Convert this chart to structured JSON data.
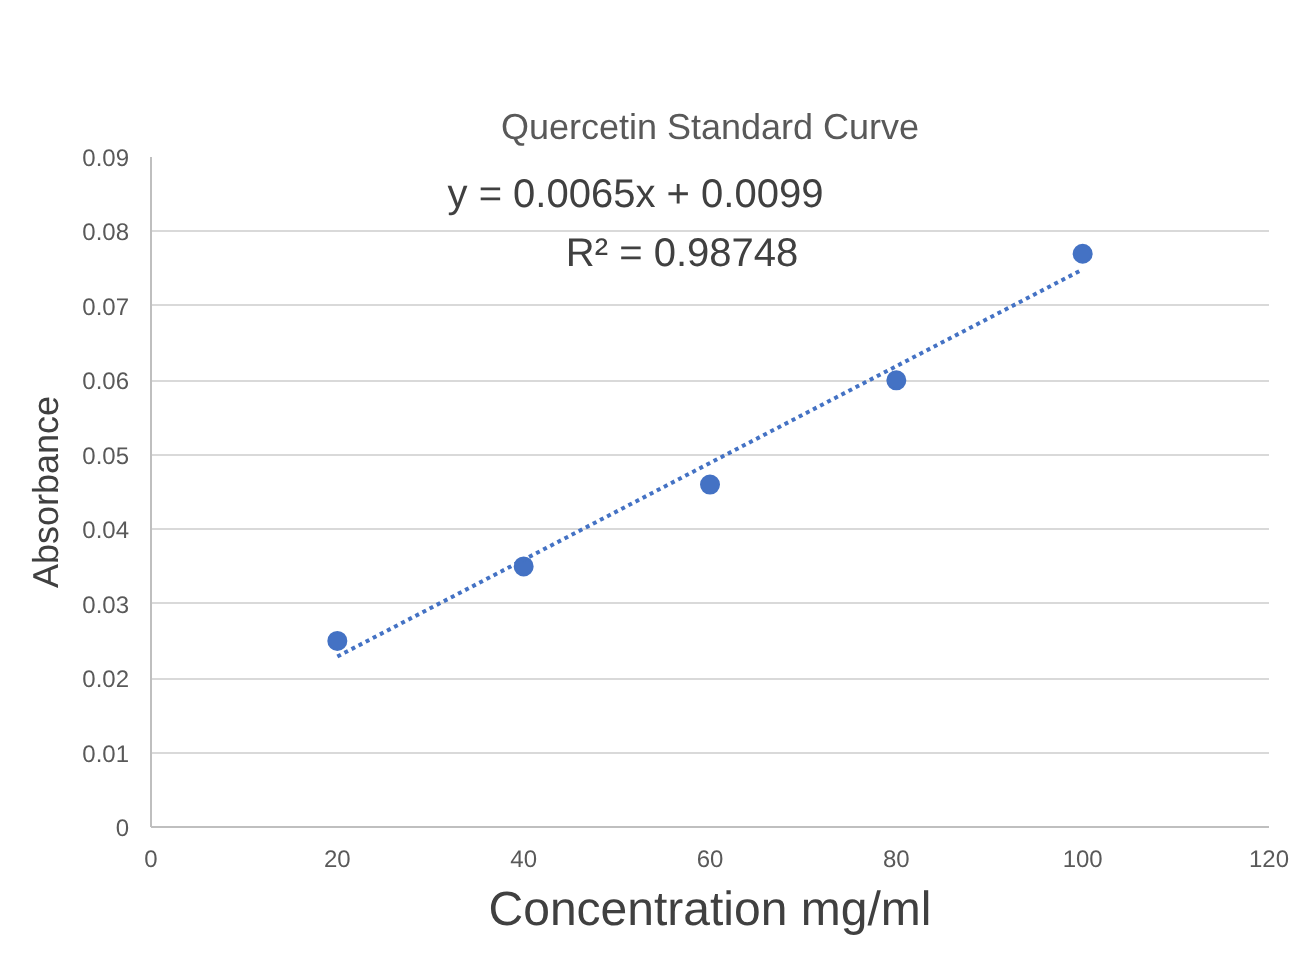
{
  "chart_data": {
    "type": "scatter",
    "title": "Quercetin Standard Curve",
    "xlabel": "Concentration mg/ml",
    "ylabel": "Absorbance",
    "annotations": [
      "y = 0.0065x + 0.0099",
      "R² = 0.98748"
    ],
    "series": [
      {
        "color": "#4472c4",
        "x": [
          20,
          40,
          60,
          80,
          100
        ],
        "values": [
          0.025,
          0.035,
          0.046,
          0.06,
          0.077
        ],
        "marker": "circle"
      },
      {
        "type": "line",
        "color": "#4472c4",
        "x": [
          20,
          100
        ],
        "values": [
          0.0229,
          0.0749
        ],
        "line_style": "dotted"
      }
    ],
    "xlim": [
      0,
      120
    ],
    "xticks": [
      0,
      20,
      40,
      60,
      80,
      100,
      120
    ],
    "ylim": [
      0,
      0.09
    ],
    "yticks": [
      0,
      0.01,
      0.02,
      0.03,
      0.04,
      0.05,
      0.06,
      0.07,
      0.08,
      0.09
    ],
    "grid": "y"
  }
}
